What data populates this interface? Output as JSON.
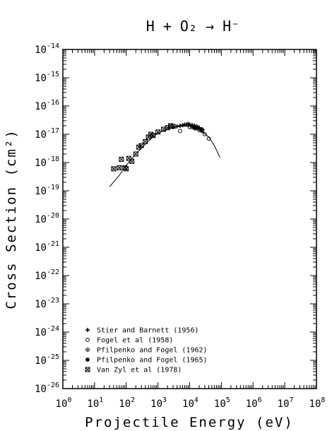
{
  "chart_data": {
    "type": "scatter",
    "title": "H + O₂ → H⁻",
    "xlabel": "Projectile Energy (eV)",
    "ylabel": "Cross Section (cm²)",
    "x_scale": "log",
    "y_scale": "log",
    "xlim": [
      1,
      100000000
    ],
    "ylim": [
      1e-26,
      1e-14
    ],
    "x_ticks": [
      {
        "base": "10",
        "exp": "0"
      },
      {
        "base": "10",
        "exp": "1"
      },
      {
        "base": "10",
        "exp": "2"
      },
      {
        "base": "10",
        "exp": "3"
      },
      {
        "base": "10",
        "exp": "4"
      },
      {
        "base": "10",
        "exp": "5"
      },
      {
        "base": "10",
        "exp": "6"
      },
      {
        "base": "10",
        "exp": "7"
      },
      {
        "base": "10",
        "exp": "8"
      }
    ],
    "y_ticks": [
      {
        "base": "10",
        "exp": "-14"
      },
      {
        "base": "10",
        "exp": "-15"
      },
      {
        "base": "10",
        "exp": "-16"
      },
      {
        "base": "10",
        "exp": "-17"
      },
      {
        "base": "10",
        "exp": "-18"
      },
      {
        "base": "10",
        "exp": "-19"
      },
      {
        "base": "10",
        "exp": "-20"
      },
      {
        "base": "10",
        "exp": "-21"
      },
      {
        "base": "10",
        "exp": "-22"
      },
      {
        "base": "10",
        "exp": "-23"
      },
      {
        "base": "10",
        "exp": "-24"
      },
      {
        "base": "10",
        "exp": "-25"
      },
      {
        "base": "10",
        "exp": "-26"
      }
    ],
    "grid": false,
    "legend_position": "bottom-left",
    "series": [
      {
        "name": "Stier and Barnett (1956)",
        "marker": "plus",
        "points": [
          [
            3000,
            1.8e-17
          ],
          [
            4000,
            1.9e-17
          ],
          [
            5000,
            2e-17
          ],
          [
            6000,
            2.1e-17
          ],
          [
            7000,
            2.2e-17
          ],
          [
            8000,
            2.2e-17
          ],
          [
            9000,
            2.3e-17
          ],
          [
            10000,
            2.2e-17
          ],
          [
            12000,
            2.1e-17
          ],
          [
            14000,
            2e-17
          ],
          [
            16000,
            1.9e-17
          ],
          [
            18000,
            1.8e-17
          ],
          [
            20000,
            1.7e-17
          ],
          [
            25000,
            1.5e-17
          ]
        ]
      },
      {
        "name": "Fogel et al (1958)",
        "marker": "circle",
        "points": [
          [
            5000,
            1.3e-17
          ],
          [
            10000,
            1.8e-17
          ],
          [
            15000,
            1.6e-17
          ],
          [
            20000,
            1.4e-17
          ],
          [
            25000,
            1.3e-17
          ],
          [
            30000,
            1e-17
          ],
          [
            40000,
            7e-18
          ]
        ]
      },
      {
        "name": "Pfilpenko and Fogel (1962)",
        "marker": "circle-dot",
        "points": [
          [
            12000,
            1.8e-17
          ],
          [
            18000,
            1.6e-17
          ],
          [
            25000,
            1.4e-17
          ]
        ]
      },
      {
        "name": "Pfilpenko and Fogel (1965)",
        "marker": "filled-circle",
        "points": [
          [
            14000,
            1.7e-17
          ],
          [
            22000,
            1.5e-17
          ]
        ]
      },
      {
        "name": "Van Zyl et al (1978)",
        "marker": "boxed-x",
        "points": [
          [
            40,
            6e-19
          ],
          [
            60,
            6.5e-19
          ],
          [
            70,
            1.3e-18
          ],
          [
            90,
            6.5e-19
          ],
          [
            100,
            6e-19
          ],
          [
            120,
            1.4e-18
          ],
          [
            150,
            1.1e-18
          ],
          [
            200,
            2e-18
          ],
          [
            250,
            3.5e-18
          ],
          [
            300,
            4e-18
          ],
          [
            400,
            5.5e-18
          ],
          [
            500,
            8e-18
          ],
          [
            600,
            1e-17
          ],
          [
            700,
            9e-18
          ],
          [
            1000,
            1.2e-17
          ],
          [
            1500,
            1.5e-17
          ],
          [
            2000,
            1.7e-17
          ],
          [
            2500,
            2e-17
          ],
          [
            3000,
            1.9e-17
          ]
        ]
      }
    ],
    "fit_curve": {
      "points": [
        [
          30,
          1.4e-19
        ],
        [
          60,
          3.5e-19
        ],
        [
          100,
          8e-19
        ],
        [
          200,
          2e-18
        ],
        [
          400,
          4.5e-18
        ],
        [
          700,
          8e-18
        ],
        [
          1000,
          1.1e-17
        ],
        [
          2000,
          1.5e-17
        ],
        [
          3000,
          1.75e-17
        ],
        [
          5000,
          1.9e-17
        ],
        [
          8000,
          1.95e-17
        ],
        [
          10000,
          1.9e-17
        ],
        [
          20000,
          1.5e-17
        ],
        [
          40000,
          8e-18
        ],
        [
          60000,
          4e-18
        ],
        [
          80000,
          2e-18
        ],
        [
          90000,
          1.5e-18
        ]
      ]
    }
  }
}
